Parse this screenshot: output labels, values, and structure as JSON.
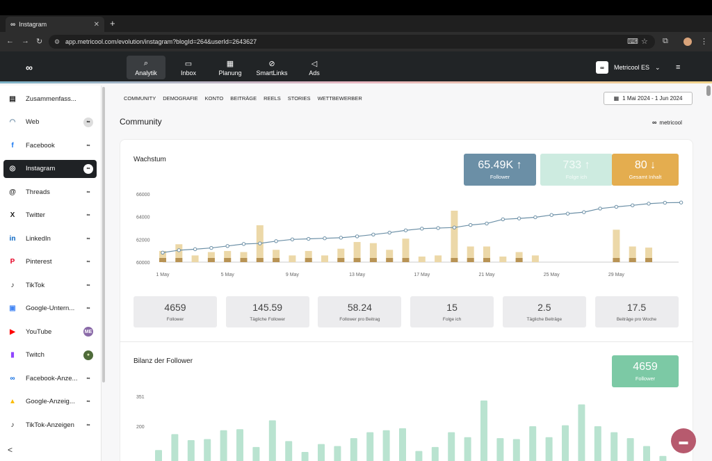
{
  "browser": {
    "tab_title": "Instagram",
    "tab_favicon": "∞",
    "url": "app.metricool.com/evolution/instagram?blogId=264&userId=2643627"
  },
  "header": {
    "logo": "∞",
    "nav": [
      {
        "label": "Analytik",
        "icon": "⌕"
      },
      {
        "label": "Inbox",
        "icon": "▭"
      },
      {
        "label": "Planung",
        "icon": "▦"
      },
      {
        "label": "SmartLinks",
        "icon": "⊘"
      },
      {
        "label": "Ads",
        "icon": "◁"
      }
    ],
    "account": "Metricool ES",
    "account_chevron": "⌄",
    "menu_icon": "≡"
  },
  "sidebar": {
    "items": [
      {
        "label": "Zusammenfass...",
        "icon": "▤",
        "icon_color": "#222",
        "badge": ""
      },
      {
        "label": "Web",
        "icon": "◠",
        "icon_color": "#6a8aa5",
        "badge": "∞"
      },
      {
        "label": "Facebook",
        "icon": "f",
        "icon_color": "#1877f2",
        "badge": "∞"
      },
      {
        "label": "Instagram",
        "icon": "◎",
        "icon_color": "#fff",
        "badge": "∞"
      },
      {
        "label": "Threads",
        "icon": "@",
        "icon_color": "#222",
        "badge": "∞"
      },
      {
        "label": "Twitter",
        "icon": "X",
        "icon_color": "#222",
        "badge": "∞"
      },
      {
        "label": "LinkedIn",
        "icon": "in",
        "icon_color": "#0a66c2",
        "badge": "∞"
      },
      {
        "label": "Pinterest",
        "icon": "P",
        "icon_color": "#e60023",
        "badge": "∞"
      },
      {
        "label": "TikTok",
        "icon": "♪",
        "icon_color": "#222",
        "badge": "∞"
      },
      {
        "label": "Google-Untern...",
        "icon": "▣",
        "icon_color": "#4285f4",
        "badge": "∞"
      },
      {
        "label": "YouTube",
        "icon": "▶",
        "icon_color": "#ff0000",
        "badge": "ME"
      },
      {
        "label": "Twitch",
        "icon": "▮",
        "icon_color": "#9146ff",
        "badge": "●"
      },
      {
        "label": "Facebook-Anze...",
        "icon": "∞",
        "icon_color": "#0668e1",
        "badge": "∞"
      },
      {
        "label": "Google-Anzeig...",
        "icon": "▲",
        "icon_color": "#fbbc04",
        "badge": "∞"
      },
      {
        "label": "TikTok-Anzeigen",
        "icon": "♪",
        "icon_color": "#222",
        "badge": "∞"
      }
    ],
    "collapse_icon": "<"
  },
  "subtabs": [
    "COMMUNITY",
    "DEMOGRAFIE",
    "KONTO",
    "BEITRÄGE",
    "REELS",
    "STORIES",
    "WETTBEWERBER"
  ],
  "date_range": "1 Mai 2024 - 1 Jun 2024",
  "section_title": "Community",
  "brand_name": "metricool",
  "growth": {
    "title": "Wachstum",
    "kpis": [
      {
        "value": "65.49K",
        "arrow": "↑",
        "label": "Follower",
        "color": "#6b8fa6"
      },
      {
        "value": "733",
        "arrow": "↑",
        "label": "Folge ich",
        "color": "#cdebe0"
      },
      {
        "value": "80",
        "arrow": "↓",
        "label": "Gesamt Inhalt",
        "color": "#e4ad4f"
      }
    ],
    "stats": [
      {
        "value": "4659",
        "label": "Follower"
      },
      {
        "value": "145.59",
        "label": "Tägliche Follower"
      },
      {
        "value": "58.24",
        "label": "Follower pro Beitrag"
      },
      {
        "value": "15",
        "label": "Folge ich"
      },
      {
        "value": "2.5",
        "label": "Tägliche Beiträge"
      },
      {
        "value": "17.5",
        "label": "Beiträge pro Woche"
      }
    ]
  },
  "balance": {
    "title": "Bilanz der Follower",
    "kpi_value": "4659",
    "kpi_label": "Follower",
    "kpi_color": "#7cc9a5"
  },
  "chart_data": [
    {
      "type": "line",
      "title": "Wachstum",
      "x_ticks": [
        "1 May",
        "5 May",
        "9 May",
        "13 May",
        "17 May",
        "21 May",
        "25 May",
        "29 May"
      ],
      "y_ticks": [
        "60000",
        "62000",
        "64000",
        "66000"
      ],
      "ylim": [
        60000,
        66000
      ],
      "series": [
        {
          "name": "Follower",
          "values": [
            60840,
            61050,
            61140,
            61250,
            61420,
            61600,
            61650,
            61850,
            62000,
            62050,
            62100,
            62150,
            62270,
            62430,
            62600,
            62800,
            62950,
            63000,
            63050,
            63270,
            63400,
            63770,
            63850,
            63950,
            64150,
            64270,
            64400,
            64720,
            64870,
            65000,
            65150,
            65230,
            65250
          ]
        },
        {
          "name": "Gesamt Inhalt",
          "values": [
            1000,
            1600,
            600,
            900,
            1000,
            900,
            3300,
            1100,
            600,
            1000,
            600,
            1200,
            1800,
            1700,
            1100,
            2100,
            500,
            600,
            4600,
            1400,
            1400,
            500,
            900,
            600,
            0,
            0,
            0,
            0,
            2900,
            1400,
            1300,
            0,
            0
          ]
        }
      ]
    },
    {
      "type": "bar",
      "title": "Bilanz der Follower",
      "y_ticks": [
        "200",
        "351"
      ],
      "ylim": [
        0,
        351
      ],
      "series": [
        {
          "name": "Follower",
          "values": [
            80,
            160,
            130,
            135,
            180,
            185,
            95,
            230,
            125,
            70,
            110,
            100,
            140,
            170,
            180,
            190,
            75,
            95,
            170,
            145,
            330,
            140,
            135,
            200,
            145,
            205,
            310,
            200,
            170,
            140,
            100,
            50
          ]
        }
      ]
    }
  ]
}
